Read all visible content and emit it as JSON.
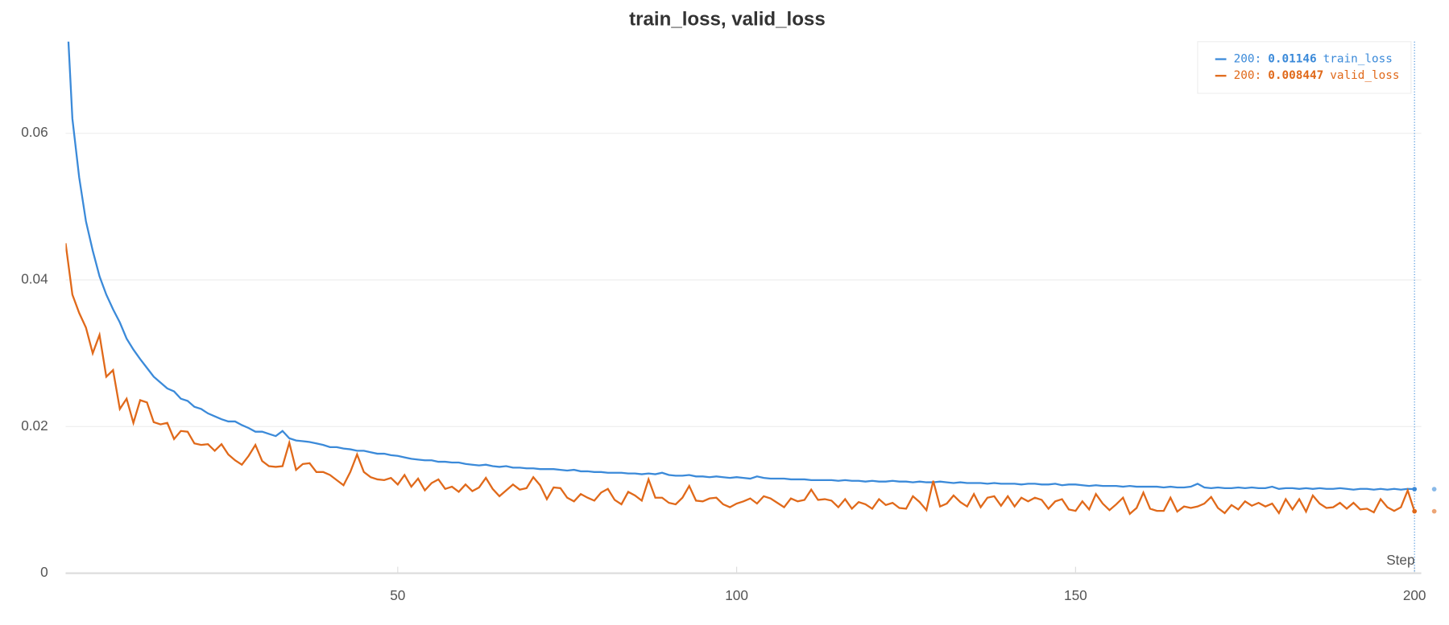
{
  "chart_data": {
    "type": "line",
    "title": "train_loss, valid_loss",
    "x_label": "Step",
    "x": [
      1,
      2,
      3,
      4,
      5,
      6,
      7,
      8,
      9,
      10,
      11,
      12,
      13,
      14,
      15,
      16,
      17,
      18,
      19,
      20,
      21,
      22,
      23,
      24,
      25,
      26,
      27,
      28,
      29,
      30,
      31,
      32,
      33,
      34,
      35,
      36,
      37,
      38,
      39,
      40,
      41,
      42,
      43,
      44,
      45,
      46,
      47,
      48,
      49,
      50,
      51,
      52,
      53,
      54,
      55,
      56,
      57,
      58,
      59,
      60,
      61,
      62,
      63,
      64,
      65,
      66,
      67,
      68,
      69,
      70,
      71,
      72,
      73,
      74,
      75,
      76,
      77,
      78,
      79,
      80,
      81,
      82,
      83,
      84,
      85,
      86,
      87,
      88,
      89,
      90,
      91,
      92,
      93,
      94,
      95,
      96,
      97,
      98,
      99,
      100,
      101,
      102,
      103,
      104,
      105,
      106,
      107,
      108,
      109,
      110,
      111,
      112,
      113,
      114,
      115,
      116,
      117,
      118,
      119,
      120,
      121,
      122,
      123,
      124,
      125,
      126,
      127,
      128,
      129,
      130,
      131,
      132,
      133,
      134,
      135,
      136,
      137,
      138,
      139,
      140,
      141,
      142,
      143,
      144,
      145,
      146,
      147,
      148,
      149,
      150,
      151,
      152,
      153,
      154,
      155,
      156,
      157,
      158,
      159,
      160,
      161,
      162,
      163,
      164,
      165,
      166,
      167,
      168,
      169,
      170,
      171,
      172,
      173,
      174,
      175,
      176,
      177,
      178,
      179,
      180,
      181,
      182,
      183,
      184,
      185,
      186,
      187,
      188,
      189,
      190,
      191,
      192,
      193,
      194,
      195,
      196,
      197,
      198,
      199,
      200
    ],
    "series": [
      {
        "name": "train_loss",
        "color": "#3b8ad9",
        "values": [
          0.08,
          0.062,
          0.054,
          0.048,
          0.044,
          0.0405,
          0.038,
          0.036,
          0.0342,
          0.032,
          0.0305,
          0.0292,
          0.028,
          0.0268,
          0.026,
          0.0252,
          0.0248,
          0.0238,
          0.0235,
          0.0227,
          0.0224,
          0.0218,
          0.0214,
          0.021,
          0.0207,
          0.0207,
          0.0202,
          0.0198,
          0.0193,
          0.0193,
          0.019,
          0.0187,
          0.0194,
          0.0184,
          0.0181,
          0.018,
          0.0179,
          0.0177,
          0.0175,
          0.0172,
          0.0172,
          0.017,
          0.0169,
          0.0167,
          0.0167,
          0.0165,
          0.0163,
          0.0163,
          0.0161,
          0.016,
          0.0158,
          0.0156,
          0.0155,
          0.0154,
          0.0154,
          0.0152,
          0.0152,
          0.0151,
          0.0151,
          0.0149,
          0.0148,
          0.0147,
          0.0148,
          0.0146,
          0.0145,
          0.0146,
          0.0144,
          0.0144,
          0.0143,
          0.0143,
          0.0142,
          0.0142,
          0.0142,
          0.0141,
          0.014,
          0.0141,
          0.0139,
          0.0139,
          0.0138,
          0.0138,
          0.0137,
          0.0137,
          0.0137,
          0.0136,
          0.0136,
          0.0135,
          0.0136,
          0.0135,
          0.0137,
          0.0134,
          0.0133,
          0.0133,
          0.0134,
          0.0132,
          0.0132,
          0.0131,
          0.0132,
          0.0131,
          0.013,
          0.0131,
          0.013,
          0.0129,
          0.0132,
          0.013,
          0.0129,
          0.0129,
          0.0129,
          0.0128,
          0.0128,
          0.0128,
          0.0127,
          0.0127,
          0.0127,
          0.0127,
          0.0126,
          0.0127,
          0.0126,
          0.0126,
          0.0125,
          0.0126,
          0.0125,
          0.0125,
          0.0126,
          0.0125,
          0.0125,
          0.0124,
          0.0125,
          0.0124,
          0.0124,
          0.0125,
          0.0124,
          0.0123,
          0.0124,
          0.0123,
          0.0123,
          0.0123,
          0.0122,
          0.0123,
          0.0122,
          0.0122,
          0.0122,
          0.0121,
          0.0122,
          0.0122,
          0.0121,
          0.0121,
          0.0122,
          0.012,
          0.0121,
          0.0121,
          0.012,
          0.0119,
          0.012,
          0.0119,
          0.0119,
          0.0119,
          0.0118,
          0.0119,
          0.0118,
          0.0118,
          0.0118,
          0.0118,
          0.0117,
          0.0118,
          0.0117,
          0.0117,
          0.0118,
          0.0122,
          0.0117,
          0.0116,
          0.0117,
          0.0116,
          0.0116,
          0.0117,
          0.0116,
          0.0117,
          0.0116,
          0.0116,
          0.0118,
          0.0115,
          0.0116,
          0.0116,
          0.0115,
          0.0116,
          0.0115,
          0.0116,
          0.0115,
          0.0115,
          0.0116,
          0.0115,
          0.0114,
          0.0115,
          0.0115,
          0.0114,
          0.0115,
          0.0114,
          0.0115,
          0.0114,
          0.0115,
          0.01146
        ]
      },
      {
        "name": "valid_loss",
        "color": "#e0691a",
        "values": [
          0.045,
          0.038,
          0.0355,
          0.0335,
          0.03,
          0.0325,
          0.0268,
          0.0277,
          0.0224,
          0.0238,
          0.0205,
          0.0236,
          0.0233,
          0.0206,
          0.0203,
          0.0205,
          0.0183,
          0.0194,
          0.0193,
          0.0177,
          0.0175,
          0.0176,
          0.0167,
          0.0176,
          0.0162,
          0.0154,
          0.0148,
          0.016,
          0.0175,
          0.0153,
          0.0146,
          0.0145,
          0.0146,
          0.0178,
          0.0141,
          0.0149,
          0.015,
          0.0138,
          0.0138,
          0.0134,
          0.0127,
          0.012,
          0.0138,
          0.0162,
          0.0138,
          0.0131,
          0.0128,
          0.0127,
          0.013,
          0.0121,
          0.0134,
          0.0118,
          0.0129,
          0.0113,
          0.0123,
          0.0128,
          0.0115,
          0.0118,
          0.0111,
          0.0121,
          0.0112,
          0.0117,
          0.013,
          0.0115,
          0.0105,
          0.0113,
          0.0121,
          0.0114,
          0.0116,
          0.0131,
          0.012,
          0.0101,
          0.0117,
          0.0116,
          0.0103,
          0.0098,
          0.0108,
          0.0103,
          0.0099,
          0.011,
          0.0115,
          0.01,
          0.0094,
          0.0111,
          0.0106,
          0.0099,
          0.0128,
          0.0103,
          0.0103,
          0.0096,
          0.0094,
          0.0103,
          0.0119,
          0.0099,
          0.0098,
          0.0102,
          0.0103,
          0.0094,
          0.009,
          0.0095,
          0.0098,
          0.0102,
          0.0095,
          0.0105,
          0.0102,
          0.0096,
          0.009,
          0.0102,
          0.0098,
          0.01,
          0.0114,
          0.01,
          0.0101,
          0.0099,
          0.009,
          0.0101,
          0.0088,
          0.0097,
          0.0094,
          0.0088,
          0.0101,
          0.0093,
          0.0096,
          0.0089,
          0.0088,
          0.0105,
          0.0097,
          0.0086,
          0.0126,
          0.0091,
          0.0095,
          0.0106,
          0.0097,
          0.0091,
          0.0108,
          0.009,
          0.0103,
          0.0105,
          0.0092,
          0.0105,
          0.0091,
          0.0103,
          0.0098,
          0.0103,
          0.01,
          0.0088,
          0.0098,
          0.0101,
          0.0087,
          0.0085,
          0.0098,
          0.0087,
          0.0108,
          0.0095,
          0.0086,
          0.0094,
          0.0103,
          0.0081,
          0.0089,
          0.011,
          0.0088,
          0.0085,
          0.0085,
          0.0103,
          0.0084,
          0.0091,
          0.0089,
          0.0091,
          0.0095,
          0.0104,
          0.0089,
          0.0082,
          0.0093,
          0.0087,
          0.0098,
          0.0092,
          0.0096,
          0.0091,
          0.0095,
          0.0082,
          0.0101,
          0.0087,
          0.0101,
          0.0084,
          0.0106,
          0.0095,
          0.0089,
          0.009,
          0.0096,
          0.0088,
          0.0096,
          0.0087,
          0.0088,
          0.0083,
          0.0101,
          0.009,
          0.0085,
          0.009,
          0.0113,
          0.008447
        ]
      }
    ],
    "xlim": [
      1,
      201
    ],
    "xticks": [
      50,
      100,
      150,
      200
    ],
    "ylim": [
      0,
      0.0725
    ],
    "yticks": [
      0,
      0.02,
      0.04,
      0.06
    ],
    "grid": true,
    "legend": "upper right"
  }
}
